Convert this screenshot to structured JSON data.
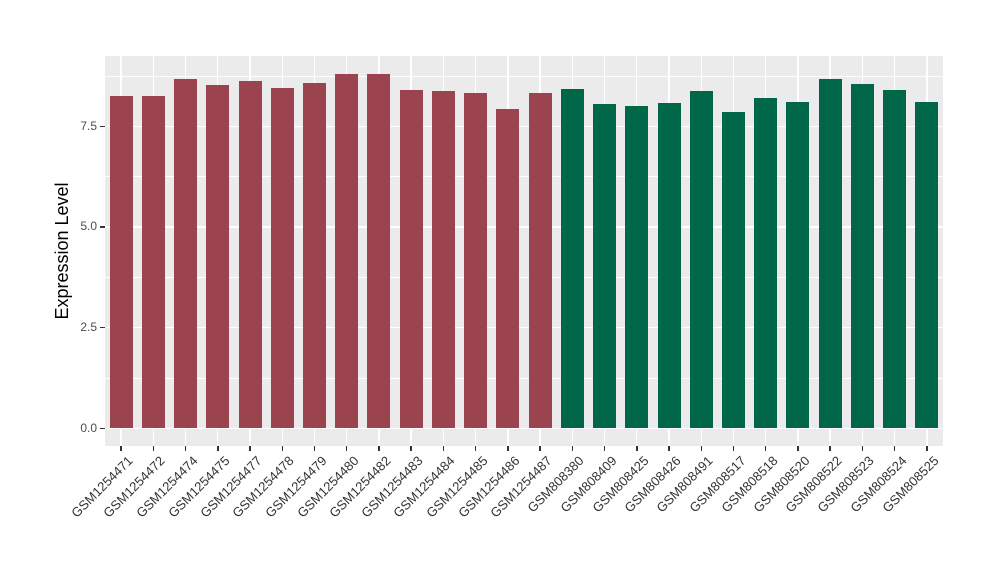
{
  "colors": {
    "figure_background": "#FFFFFF",
    "panel_background": "#EBEBEB",
    "gridline": "#FFFFFF",
    "tick_mark": "#333333",
    "tick_label": "#4D4D4D",
    "axis_title": "#000000"
  },
  "chart_data": {
    "type": "bar",
    "title": "",
    "xlabel": "",
    "ylabel": "Expression Level",
    "legend": "none",
    "grid": "white major+minor gridlines on grey panel",
    "bar_orientation": "vertical",
    "x_label_rotation_deg": 45,
    "bar_width_frac": 0.72,
    "ylim": [
      0,
      9.25
    ],
    "yticks": [
      0,
      2.5,
      5,
      7.5
    ],
    "ytick_labels": [
      "0.0",
      "2.5",
      "5.0",
      "7.5"
    ],
    "yminor_ticks": [
      1.25,
      3.75,
      6.25,
      8.75
    ],
    "categories": [
      "GSM1254471",
      "GSM1254472",
      "GSM1254474",
      "GSM1254475",
      "GSM1254477",
      "GSM1254478",
      "GSM1254479",
      "GSM1254480",
      "GSM1254482",
      "GSM1254483",
      "GSM1254484",
      "GSM1254485",
      "GSM1254486",
      "GSM1254487",
      "GSM808380",
      "GSM808409",
      "GSM808425",
      "GSM808426",
      "GSM808491",
      "GSM808517",
      "GSM808518",
      "GSM808520",
      "GSM808522",
      "GSM808523",
      "GSM808524",
      "GSM808525"
    ],
    "values": [
      8.26,
      8.26,
      8.68,
      8.53,
      8.62,
      8.44,
      8.57,
      8.79,
      8.81,
      8.41,
      8.37,
      8.32,
      7.94,
      8.33,
      8.42,
      8.06,
      8.0,
      8.09,
      8.38,
      7.86,
      8.2,
      8.11,
      8.67,
      8.56,
      8.39,
      8.1
    ],
    "groups": [
      "group1",
      "group1",
      "group1",
      "group1",
      "group1",
      "group1",
      "group1",
      "group1",
      "group1",
      "group1",
      "group1",
      "group1",
      "group1",
      "group1",
      "group2",
      "group2",
      "group2",
      "group2",
      "group2",
      "group2",
      "group2",
      "group2",
      "group2",
      "group2",
      "group2",
      "group2"
    ],
    "group_colors": {
      "group1": "#9B4450",
      "group2": "#006849"
    }
  }
}
